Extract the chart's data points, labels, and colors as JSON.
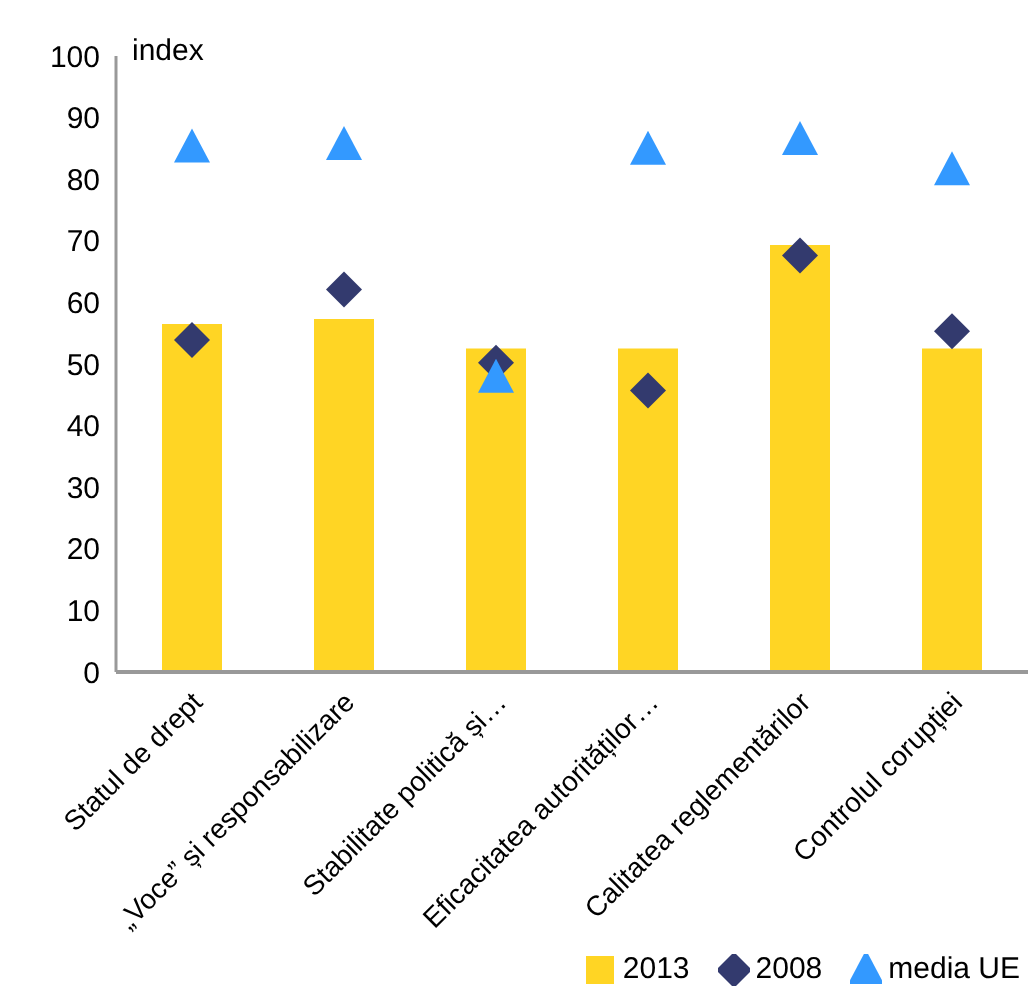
{
  "chart_data": {
    "type": "bar",
    "ylabel": "index",
    "categories": [
      "Statul de drept",
      "„Voce” și responsabilizare",
      "Stabilitate politică și…",
      "Eficacitatea autorităților…",
      "Calitatea reglementărilor",
      "Controlul corupției"
    ],
    "series": [
      {
        "name": "2013",
        "color": "#ffd524",
        "values": [
          56.5,
          57.3,
          52.5,
          52.5,
          69.3,
          52.5
        ]
      },
      {
        "name": "2008",
        "type": "scatter",
        "marker": "diamond",
        "color": "#333a6e",
        "values": [
          53.9,
          62.1,
          50.2,
          45.7,
          67.6,
          55.3
        ]
      },
      {
        "name": "media UE",
        "type": "scatter",
        "marker": "triangle",
        "color": "#3399ff",
        "values": [
          85,
          85.4,
          47.6,
          84.6,
          86.2,
          81.3
        ]
      }
    ],
    "ylim": [
      0,
      100
    ],
    "yticks": [
      0,
      10,
      20,
      30,
      40,
      50,
      60,
      70,
      80,
      90,
      100
    ],
    "grid": false,
    "legend": "bottom right"
  }
}
